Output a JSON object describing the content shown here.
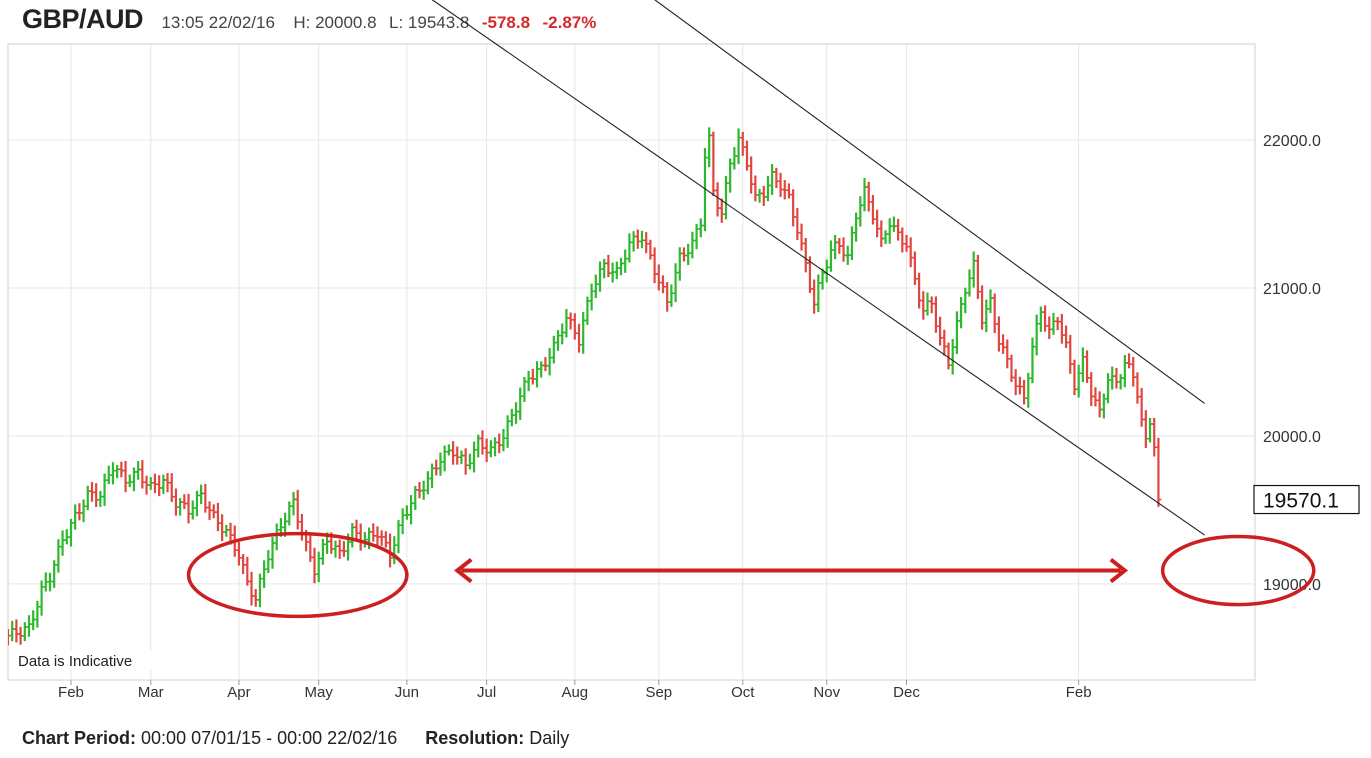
{
  "header": {
    "symbol": "GBP/AUD",
    "timestamp": "13:05 22/02/16",
    "high": "H: 20000.8",
    "low": "L: 19543.8",
    "change": "-578.8",
    "change_pct": "-2.87%"
  },
  "footer": {
    "period_label": "Chart Period:",
    "period_value": "00:00 07/01/15 - 00:00 22/02/16",
    "resolution_label": "Resolution:",
    "resolution_value": "Daily"
  },
  "colors": {
    "up": "#2db82d",
    "down": "#e0463f",
    "annotation": "#cc1f1f",
    "trendline": "#222222",
    "grid": "#e6e6e6"
  },
  "chart_data": {
    "type": "candlestick-ohlc",
    "title": "GBP/AUD",
    "ylim": [
      18350,
      22650
    ],
    "y_ticks": [
      19000,
      20000,
      21000,
      22000
    ],
    "y_tick_labels": [
      "19000.0",
      "20000.0",
      "21000.0",
      "22000.0"
    ],
    "x_tick_labels": [
      "Feb",
      "Mar",
      "Apr",
      "May",
      "Jun",
      "Jul",
      "Aug",
      "Sep",
      "Oct",
      "Nov",
      "Dec",
      "Feb"
    ],
    "grid": true,
    "last_price": 19570.1,
    "last_price_label": "19570.1",
    "note": "Data is Indicative",
    "close_path": [
      [
        0,
        18650
      ],
      [
        5,
        18700
      ],
      [
        8,
        18950
      ],
      [
        10,
        19050
      ],
      [
        13,
        19300
      ],
      [
        16,
        19450
      ],
      [
        19,
        19600
      ],
      [
        22,
        19600
      ],
      [
        25,
        19800
      ],
      [
        28,
        19700
      ],
      [
        31,
        19750
      ],
      [
        34,
        19650
      ],
      [
        37,
        19700
      ],
      [
        40,
        19550
      ],
      [
        43,
        19500
      ],
      [
        46,
        19600
      ],
      [
        49,
        19450
      ],
      [
        52,
        19350
      ],
      [
        55,
        19200
      ],
      [
        57,
        19000
      ],
      [
        59,
        18900
      ],
      [
        62,
        19200
      ],
      [
        65,
        19400
      ],
      [
        68,
        19550
      ],
      [
        71,
        19250
      ],
      [
        73,
        19100
      ],
      [
        76,
        19300
      ],
      [
        79,
        19200
      ],
      [
        82,
        19350
      ],
      [
        85,
        19300
      ],
      [
        88,
        19350
      ],
      [
        91,
        19200
      ],
      [
        94,
        19450
      ],
      [
        97,
        19600
      ],
      [
        100,
        19700
      ],
      [
        103,
        19850
      ],
      [
        106,
        19900
      ],
      [
        109,
        19800
      ],
      [
        112,
        19950
      ],
      [
        115,
        19900
      ],
      [
        118,
        20000
      ],
      [
        121,
        20200
      ],
      [
        124,
        20400
      ],
      [
        127,
        20450
      ],
      [
        130,
        20600
      ],
      [
        133,
        20800
      ],
      [
        136,
        20650
      ],
      [
        139,
        21000
      ],
      [
        142,
        21150
      ],
      [
        145,
        21100
      ],
      [
        148,
        21300
      ],
      [
        151,
        21350
      ],
      [
        153,
        21200
      ],
      [
        155,
        21050
      ],
      [
        157,
        20900
      ],
      [
        160,
        21200
      ],
      [
        163,
        21300
      ],
      [
        165,
        21450
      ],
      [
        166,
        21900
      ],
      [
        167,
        22000
      ],
      [
        168,
        21650
      ],
      [
        170,
        21500
      ],
      [
        172,
        21850
      ],
      [
        174,
        22000
      ],
      [
        176,
        21850
      ],
      [
        178,
        21600
      ],
      [
        180,
        21650
      ],
      [
        182,
        21750
      ],
      [
        184,
        21700
      ],
      [
        186,
        21600
      ],
      [
        188,
        21400
      ],
      [
        190,
        21150
      ],
      [
        192,
        20900
      ],
      [
        194,
        21100
      ],
      [
        196,
        21250
      ],
      [
        198,
        21300
      ],
      [
        200,
        21200
      ],
      [
        202,
        21500
      ],
      [
        204,
        21650
      ],
      [
        206,
        21500
      ],
      [
        208,
        21300
      ],
      [
        210,
        21450
      ],
      [
        212,
        21350
      ],
      [
        214,
        21300
      ],
      [
        216,
        21050
      ],
      [
        218,
        20850
      ],
      [
        220,
        20900
      ],
      [
        222,
        20650
      ],
      [
        224,
        20500
      ],
      [
        226,
        20750
      ],
      [
        228,
        21000
      ],
      [
        230,
        21150
      ],
      [
        232,
        20800
      ],
      [
        234,
        20900
      ],
      [
        236,
        20650
      ],
      [
        238,
        20500
      ],
      [
        240,
        20350
      ],
      [
        242,
        20250
      ],
      [
        244,
        20600
      ],
      [
        246,
        20850
      ],
      [
        248,
        20700
      ],
      [
        250,
        20800
      ],
      [
        252,
        20600
      ],
      [
        254,
        20350
      ],
      [
        256,
        20500
      ],
      [
        258,
        20300
      ],
      [
        260,
        20150
      ],
      [
        262,
        20400
      ],
      [
        264,
        20350
      ],
      [
        266,
        20500
      ],
      [
        268,
        20400
      ],
      [
        269,
        20300
      ],
      [
        270,
        20100
      ],
      [
        271,
        19950
      ],
      [
        272,
        20100
      ],
      [
        273,
        19950
      ],
      [
        274,
        19570
      ]
    ],
    "trendlines": [
      {
        "name": "upper",
        "from": [
          154,
          22950
        ],
        "to": [
          285,
          20220
        ]
      },
      {
        "name": "lower",
        "from": [
          101,
          22950
        ],
        "to": [
          285,
          19330
        ]
      }
    ],
    "annotations": [
      {
        "type": "ellipse",
        "name": "support-ellipse-left",
        "center": [
          69,
          19060
        ],
        "rx_days": 26,
        "ry_value": 280
      },
      {
        "type": "ellipse",
        "name": "target-ellipse-right",
        "center": [
          293,
          19090
        ],
        "rx_days": 18,
        "ry_value": 230
      },
      {
        "type": "double-arrow",
        "name": "time-span-arrow",
        "from": [
          107,
          19090
        ],
        "to": [
          266,
          19090
        ]
      }
    ]
  }
}
